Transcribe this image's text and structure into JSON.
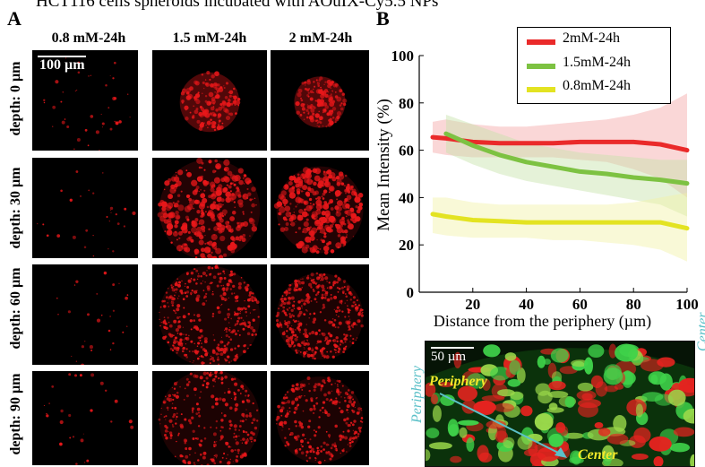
{
  "caption": "HCT116 cells spheroids incubated with AOuIX-Cy5.5 NPs",
  "panel_a": {
    "letter": "A",
    "columns": [
      "0.8 mM-24h",
      "1.5 mM-24h",
      "2 mM-24h"
    ],
    "rows": [
      "depth: 0 µm",
      "depth: 30 µm",
      "depth: 60 µm",
      "depth: 90 µm"
    ],
    "scale_bar": "100 µm",
    "tile_color": "#e8171a"
  },
  "panel_b": {
    "letter": "B",
    "chart_data": {
      "type": "line",
      "title": "",
      "xlabel": "Distance from the periphery (µm)",
      "ylabel": "Mean Intensity (%)",
      "xlim": [
        0,
        100
      ],
      "ylim": [
        0,
        100
      ],
      "xticks": [
        20,
        40,
        60,
        80,
        100
      ],
      "yticks": [
        0,
        20,
        40,
        60,
        80,
        100
      ],
      "grid": false,
      "legend_position": "top-right",
      "series": [
        {
          "name": "2mM-24h",
          "color": "#ea2a2a",
          "band_color": "#f4a6a6",
          "x": [
            5,
            10,
            20,
            30,
            40,
            50,
            60,
            70,
            80,
            90,
            100
          ],
          "values": [
            65.5,
            65,
            63.5,
            63,
            63,
            63,
            63.5,
            63.5,
            63.5,
            62.5,
            60
          ],
          "lower": [
            59,
            58,
            57,
            57,
            57,
            57,
            56,
            55,
            52,
            48,
            40
          ],
          "upper": [
            72,
            73,
            71,
            70,
            70,
            71,
            72,
            73,
            75,
            78,
            84
          ]
        },
        {
          "name": "1.5mM-24h",
          "color": "#7dc242",
          "band_color": "#c5e3a8",
          "x": [
            10,
            20,
            30,
            40,
            50,
            60,
            70,
            80,
            90,
            100
          ],
          "values": [
            67,
            62,
            58,
            55,
            53,
            51,
            50,
            48.5,
            47.5,
            46
          ],
          "lower": [
            59,
            54,
            50,
            47,
            45,
            43,
            41,
            39,
            37,
            32
          ],
          "upper": [
            75,
            71,
            67,
            63,
            61,
            59,
            58,
            57,
            56,
            56
          ]
        },
        {
          "name": "0.8mM-24h",
          "color": "#e3e322",
          "band_color": "#f1f1a6",
          "x": [
            5,
            10,
            20,
            30,
            40,
            50,
            60,
            70,
            80,
            90,
            100
          ],
          "values": [
            33,
            32,
            30.5,
            30,
            29.5,
            29.5,
            29.5,
            29.5,
            29.5,
            29.5,
            27
          ],
          "lower": [
            25,
            24,
            23,
            23,
            23,
            22,
            22,
            21,
            20,
            18,
            13
          ],
          "upper": [
            40,
            40,
            38,
            37,
            37,
            37,
            37,
            37,
            38,
            40,
            42
          ]
        }
      ]
    },
    "periphery_side_label": "Periphery",
    "center_side_label": "Center",
    "micrograph": {
      "scale_bar": "50 µm",
      "label_periphery": "Periphery",
      "label_center": "Center",
      "arrow_color": "#5bc0c8"
    }
  }
}
